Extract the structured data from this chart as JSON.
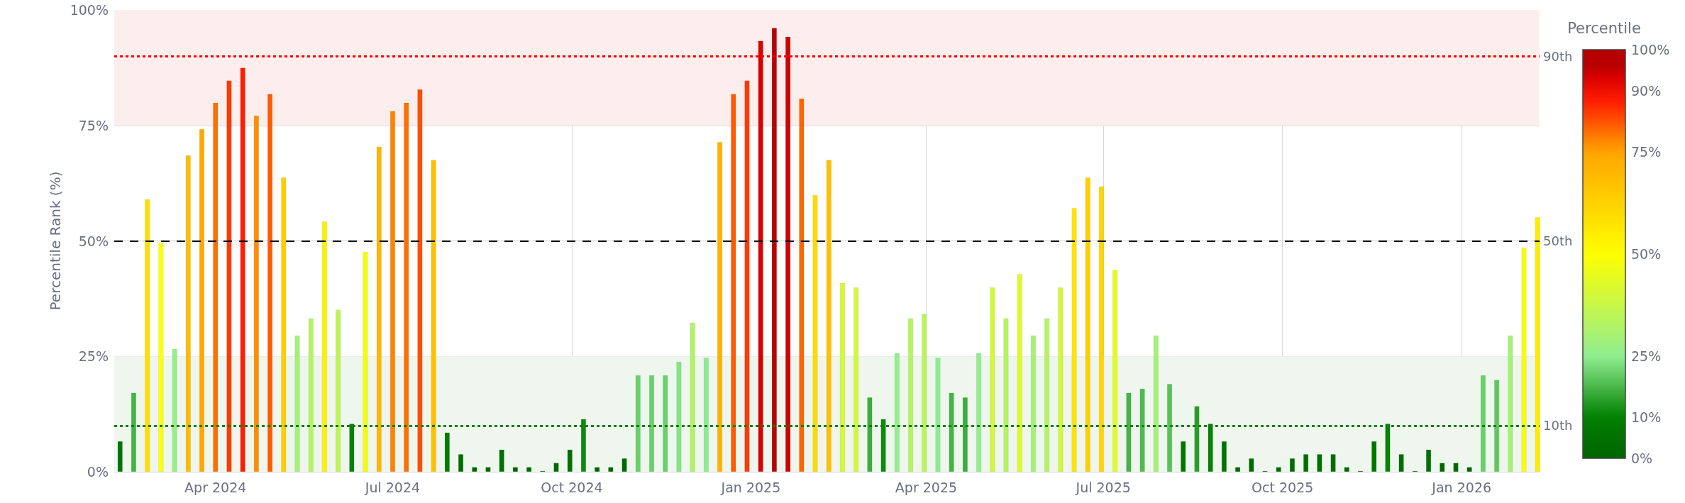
{
  "chart_data": {
    "type": "bar",
    "ylabel": "Percentile Rank (%)",
    "clabel": "Percentile",
    "x": [
      "2024-02-12",
      "2024-02-19",
      "2024-02-26",
      "2024-03-04",
      "2024-03-11",
      "2024-03-18",
      "2024-03-25",
      "2024-04-01",
      "2024-04-08",
      "2024-04-15",
      "2024-04-22",
      "2024-04-29",
      "2024-05-06",
      "2024-05-13",
      "2024-05-20",
      "2024-05-27",
      "2024-06-03",
      "2024-06-10",
      "2024-06-17",
      "2024-06-24",
      "2024-07-01",
      "2024-07-08",
      "2024-07-15",
      "2024-07-22",
      "2024-07-29",
      "2024-08-05",
      "2024-08-12",
      "2024-08-19",
      "2024-08-26",
      "2024-09-02",
      "2024-09-09",
      "2024-09-16",
      "2024-09-23",
      "2024-09-30",
      "2024-10-07",
      "2024-10-14",
      "2024-10-21",
      "2024-10-28",
      "2024-11-04",
      "2024-11-11",
      "2024-11-18",
      "2024-11-25",
      "2024-12-02",
      "2024-12-09",
      "2024-12-16",
      "2024-12-23",
      "2024-12-30",
      "2025-01-06",
      "2025-01-13",
      "2025-01-20",
      "2025-01-27",
      "2025-02-03",
      "2025-02-10",
      "2025-02-17",
      "2025-02-24",
      "2025-03-03",
      "2025-03-10",
      "2025-03-17",
      "2025-03-24",
      "2025-03-31",
      "2025-04-07",
      "2025-04-14",
      "2025-04-21",
      "2025-04-28",
      "2025-05-05",
      "2025-05-12",
      "2025-05-19",
      "2025-05-26",
      "2025-06-02",
      "2025-06-09",
      "2025-06-16",
      "2025-06-23",
      "2025-06-30",
      "2025-07-07",
      "2025-07-14",
      "2025-07-21",
      "2025-07-28",
      "2025-08-04",
      "2025-08-11",
      "2025-08-18",
      "2025-08-25",
      "2025-09-01",
      "2025-09-08",
      "2025-09-15",
      "2025-09-22",
      "2025-09-29",
      "2025-10-06",
      "2025-10-13",
      "2025-10-20",
      "2025-10-27",
      "2025-11-03",
      "2025-11-10",
      "2025-11-17",
      "2025-11-24",
      "2025-12-01",
      "2025-12-08",
      "2025-12-15",
      "2025-12-22",
      "2025-12-29",
      "2026-01-05",
      "2026-01-12",
      "2026-01-19",
      "2026-01-26",
      "2026-02-02",
      "2026-02-09"
    ],
    "values": [
      6.6,
      17.1,
      59.0,
      49.5,
      26.6,
      68.5,
      74.2,
      79.9,
      84.7,
      87.5,
      77.1,
      81.8,
      63.7,
      29.5,
      33.2,
      54.2,
      35.1,
      10.4,
      47.6,
      70.4,
      78.1,
      79.9,
      82.8,
      67.5,
      8.5,
      3.8,
      1.0,
      1.0,
      4.8,
      1.0,
      1.0,
      0.2,
      1.9,
      4.8,
      11.4,
      1.0,
      1.0,
      2.9,
      20.9,
      20.9,
      20.9,
      23.8,
      32.3,
      24.7,
      71.4,
      81.8,
      84.7,
      93.3,
      96.1,
      94.2,
      80.8,
      59.9,
      67.5,
      40.9,
      39.9,
      16.1,
      11.4,
      25.7,
      33.2,
      34.2,
      24.7,
      17.1,
      16.1,
      25.7,
      39.9,
      33.2,
      42.8,
      29.5,
      33.2,
      39.9,
      57.1,
      63.7,
      61.8,
      43.7,
      17.1,
      18.0,
      29.5,
      19.0,
      6.6,
      14.2,
      10.4,
      6.6,
      1.0,
      2.9,
      0.2,
      1.0,
      2.9,
      3.8,
      3.8,
      3.8,
      1.0,
      0.2,
      6.6,
      10.4,
      3.8,
      0.2,
      4.8,
      1.9,
      1.9,
      1.0,
      20.9,
      19.9,
      29.5,
      48.5,
      55.1
    ],
    "colors": [
      "#007600",
      "#44b444",
      "#ffdf00",
      "#fdff03",
      "#97ef87",
      "#ffbc00",
      "#ffa800",
      "#ff6f00",
      "#ff3a00",
      "#ff1c00",
      "#ff8e00",
      "#ff5a00",
      "#ffce00",
      "#a4f176",
      "#b4f461",
      "#fff000",
      "#bdf556",
      "#048304",
      "#f4fd0e",
      "#ffb600",
      "#ff8300",
      "#ff6f00",
      "#ff4f00",
      "#ffc000",
      "#007c00",
      "#006f00",
      "#006700",
      "#006700",
      "#007100",
      "#006700",
      "#006700",
      "#006500",
      "#006900",
      "#007100",
      "#0d8a0d",
      "#006700",
      "#006700",
      "#006c00",
      "#69d069",
      "#69d069",
      "#69d069",
      "#84e584",
      "#b0f366",
      "#8dec8d",
      "#ffb200",
      "#ff5a00",
      "#ff3a00",
      "#d90000",
      "#b80000",
      "#ce0000",
      "#ff6500",
      "#ffdb00",
      "#ffc000",
      "#d7f934",
      "#d2f83a",
      "#3bad3b",
      "#0d8a0d",
      "#93ee8c",
      "#b4f461",
      "#b9f45b",
      "#8dec8d",
      "#44b444",
      "#3bad3b",
      "#93ee8c",
      "#d2f83a",
      "#b4f461",
      "#dffa29",
      "#a4f176",
      "#b4f461",
      "#d2f83a",
      "#ffe500",
      "#ffce00",
      "#ffd400",
      "#e3fb24",
      "#44b444",
      "#4dbb4d",
      "#a4f176",
      "#56c256",
      "#007600",
      "#289f28",
      "#048304",
      "#007600",
      "#006700",
      "#006c00",
      "#006500",
      "#006700",
      "#006c00",
      "#006f00",
      "#006f00",
      "#006f00",
      "#006700",
      "#006500",
      "#007600",
      "#048304",
      "#006f00",
      "#006500",
      "#007100",
      "#006900",
      "#006900",
      "#006700",
      "#69d069",
      "#5fc95f",
      "#a4f176",
      "#f8fe09",
      "#ffed00"
    ],
    "xlim": [
      "2024-02-09",
      "2026-02-10"
    ],
    "xticks": [
      {
        "value": "2024-04-01",
        "label": "Apr 2024"
      },
      {
        "value": "2024-07-01",
        "label": "Jul 2024"
      },
      {
        "value": "2024-10-01",
        "label": "Oct 2024"
      },
      {
        "value": "2025-01-01",
        "label": "Jan 2025"
      },
      {
        "value": "2025-04-01",
        "label": "Apr 2025"
      },
      {
        "value": "2025-07-01",
        "label": "Jul 2025"
      },
      {
        "value": "2025-10-01",
        "label": "Oct 2025"
      },
      {
        "value": "2026-01-01",
        "label": "Jan 2026"
      }
    ],
    "ylim": [
      0,
      100
    ],
    "yticks": [
      {
        "value": 0,
        "label": "0%"
      },
      {
        "value": 25,
        "label": "25%"
      },
      {
        "value": 50,
        "label": "50%"
      },
      {
        "value": 75,
        "label": "75%"
      },
      {
        "value": 100,
        "label": "100%"
      }
    ],
    "clim": [
      0,
      100
    ],
    "cticks": [
      {
        "value": 0,
        "label": "0%"
      },
      {
        "value": 10,
        "label": "10%"
      },
      {
        "value": 25,
        "label": "25%"
      },
      {
        "value": 50,
        "label": "50%"
      },
      {
        "value": 75,
        "label": "75%"
      },
      {
        "value": 90,
        "label": "90%"
      },
      {
        "value": 100,
        "label": "100%"
      }
    ],
    "ref_lines": [
      {
        "axis": "y",
        "value": 90,
        "label": "90th",
        "color": "#ff0000",
        "line_style": "dotted"
      },
      {
        "axis": "y",
        "value": 50,
        "label": "50th",
        "color": "#000000",
        "line_style": "dashed"
      },
      {
        "axis": "y",
        "value": 10,
        "label": "10th",
        "color": "#008000",
        "line_style": "dotted"
      }
    ],
    "bands": [
      {
        "axis": "y",
        "from": 75,
        "to": 100,
        "label": null,
        "color": "#fdeeee"
      },
      {
        "axis": "y",
        "from": 0,
        "to": 25,
        "label": null,
        "color": "#eef6ee"
      }
    ],
    "grid": true
  }
}
